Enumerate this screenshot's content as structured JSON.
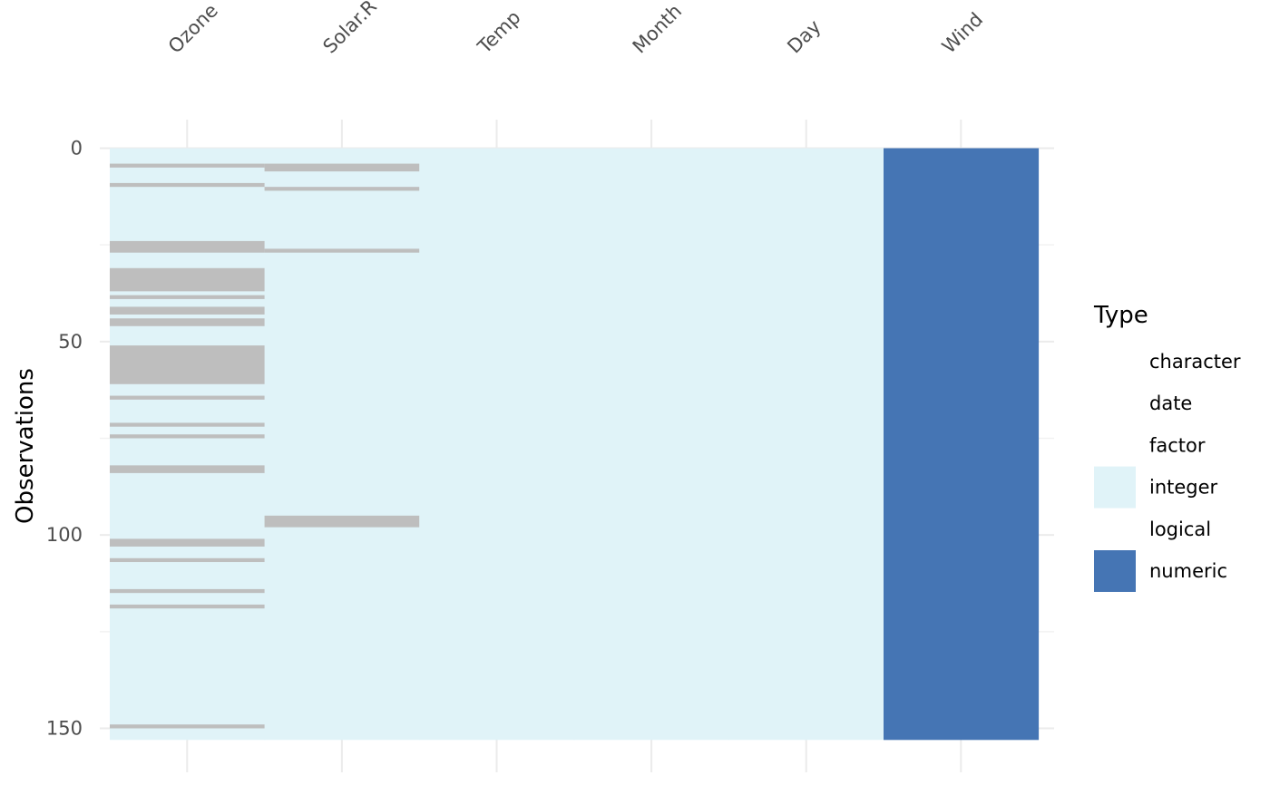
{
  "chart_data": {
    "type": "heatmap",
    "title": "",
    "xlabel": "",
    "ylabel": "Observations",
    "x_axis_position": "top",
    "columns": [
      "Ozone",
      "Solar.R",
      "Temp",
      "Month",
      "Day",
      "Wind"
    ],
    "column_types": [
      "integer",
      "integer",
      "integer",
      "integer",
      "integer",
      "numeric"
    ],
    "n_observations": 153,
    "ylim": [
      0,
      153
    ],
    "y_ticks": [
      0,
      50,
      100,
      150
    ],
    "missing_rows": {
      "Ozone": [
        5,
        10,
        25,
        26,
        27,
        32,
        33,
        34,
        35,
        36,
        37,
        39,
        42,
        43,
        45,
        46,
        52,
        53,
        54,
        55,
        56,
        57,
        58,
        59,
        60,
        61,
        65,
        72,
        75,
        83,
        84,
        102,
        103,
        107,
        115,
        119,
        150
      ],
      "Solar.R": [
        5,
        6,
        11,
        27,
        96,
        97,
        98
      ],
      "Temp": [],
      "Month": [],
      "Day": [],
      "Wind": []
    },
    "missing_color": "#bebebe",
    "legend": {
      "title": "Type",
      "position": "right",
      "items": [
        {
          "label": "character",
          "color": "#ffffff"
        },
        {
          "label": "date",
          "color": "#ffffff"
        },
        {
          "label": "factor",
          "color": "#ffffff"
        },
        {
          "label": "integer",
          "color": "#e0f3f8"
        },
        {
          "label": "logical",
          "color": "#ffffff"
        },
        {
          "label": "numeric",
          "color": "#4575b4"
        }
      ]
    },
    "grid": true
  }
}
